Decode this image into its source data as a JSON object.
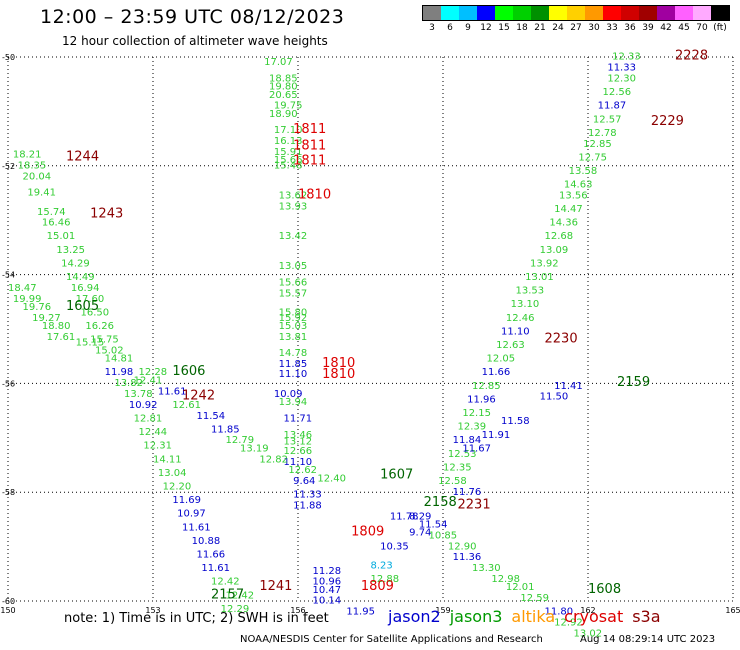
{
  "header": {
    "title": "12:00 – 23:59 UTC 08/12/2023",
    "subtitle": "12 hour collection of altimeter wave heights"
  },
  "legend": {
    "colors": [
      "#7f7f7f",
      "#00ffff",
      "#00bfff",
      "#0000ff",
      "#00ff00",
      "#00d000",
      "#009000",
      "#ffff00",
      "#ffd000",
      "#ff9900",
      "#ff0000",
      "#d00000",
      "#a00000",
      "#a000a0",
      "#ff60ff",
      "#ffaaff",
      "#000000"
    ],
    "labels": [
      "3",
      "6",
      "9",
      "12",
      "15",
      "18",
      "21",
      "24",
      "27",
      "30",
      "33",
      "36",
      "39",
      "42",
      "45",
      "70",
      "(ft)"
    ]
  },
  "map": {
    "lon_range": [
      150,
      165
    ],
    "lat_range": [
      -60,
      -50
    ],
    "x_ticks": [
      "150",
      "153",
      "156",
      "159",
      "162",
      "165"
    ],
    "y_ticks": [
      "-50",
      "-52",
      "-54",
      "-56",
      "-58",
      "-60"
    ],
    "grid": "dotted"
  },
  "times": [
    {
      "text": "2228",
      "lon": 163.8,
      "lat": -50.05,
      "color": "#8b0000"
    },
    {
      "text": "2229",
      "lon": 163.3,
      "lat": -51.25,
      "color": "#8b0000"
    },
    {
      "text": "2230",
      "lon": 161.1,
      "lat": -55.25,
      "color": "#8b0000"
    },
    {
      "text": "2231",
      "lon": 159.3,
      "lat": -58.3,
      "color": "#8b0000"
    },
    {
      "text": "1244",
      "lon": 151.2,
      "lat": -51.9,
      "color": "#8b0000"
    },
    {
      "text": "1243",
      "lon": 151.7,
      "lat": -52.95,
      "color": "#8b0000"
    },
    {
      "text": "1242",
      "lon": 153.6,
      "lat": -56.3,
      "color": "#8b0000"
    },
    {
      "text": "1241",
      "lon": 155.2,
      "lat": -59.8,
      "color": "#8b0000"
    },
    {
      "text": "1811",
      "lon": 155.9,
      "lat": -51.4,
      "color": "#dd0000"
    },
    {
      "text": "1811",
      "lon": 155.9,
      "lat": -51.7,
      "color": "#dd0000"
    },
    {
      "text": "1811",
      "lon": 155.9,
      "lat": -51.98,
      "color": "#dd0000"
    },
    {
      "text": "1810",
      "lon": 156.0,
      "lat": -52.6,
      "color": "#dd0000"
    },
    {
      "text": "1810",
      "lon": 156.5,
      "lat": -55.7,
      "color": "#dd0000"
    },
    {
      "text": "1810",
      "lon": 156.5,
      "lat": -55.9,
      "color": "#dd0000"
    },
    {
      "text": "1809",
      "lon": 157.1,
      "lat": -58.8,
      "color": "#dd0000"
    },
    {
      "text": "1809",
      "lon": 157.3,
      "lat": -59.8,
      "color": "#dd0000"
    },
    {
      "text": "1605",
      "lon": 151.2,
      "lat": -54.65,
      "color": "#006400"
    },
    {
      "text": "1606",
      "lon": 153.4,
      "lat": -55.85,
      "color": "#006400"
    },
    {
      "text": "1607",
      "lon": 157.7,
      "lat": -57.75,
      "color": "#006400"
    },
    {
      "text": "1608",
      "lon": 162.0,
      "lat": -59.85,
      "color": "#006400"
    },
    {
      "text": "2158",
      "lon": 158.6,
      "lat": -58.25,
      "color": "#006400"
    },
    {
      "text": "2159",
      "lon": 162.6,
      "lat": -56.05,
      "color": "#006400"
    },
    {
      "text": "2157",
      "lon": 154.2,
      "lat": -59.95,
      "color": "#006400"
    }
  ],
  "labels": [
    {
      "text": "17.07",
      "lon": 155.3,
      "lat": -50.15,
      "color": "#33cc33"
    },
    {
      "text": "18.85",
      "lon": 155.4,
      "lat": -50.45,
      "color": "#33cc33"
    },
    {
      "text": "19.80",
      "lon": 155.4,
      "lat": -50.6,
      "color": "#33cc33"
    },
    {
      "text": "20.65",
      "lon": 155.4,
      "lat": -50.75,
      "color": "#33cc33"
    },
    {
      "text": "19.75",
      "lon": 155.5,
      "lat": -50.95,
      "color": "#33cc33"
    },
    {
      "text": "18.90",
      "lon": 155.4,
      "lat": -51.1,
      "color": "#33cc33"
    },
    {
      "text": "17.10",
      "lon": 155.5,
      "lat": -51.4,
      "color": "#33cc33"
    },
    {
      "text": "16.13",
      "lon": 155.5,
      "lat": -51.6,
      "color": "#33cc33"
    },
    {
      "text": "15.91",
      "lon": 155.5,
      "lat": -51.8,
      "color": "#33cc33"
    },
    {
      "text": "15.66",
      "lon": 155.5,
      "lat": -51.95,
      "color": "#33cc33"
    },
    {
      "text": "15.48",
      "lon": 155.5,
      "lat": -52.05,
      "color": "#33cc33"
    },
    {
      "text": "13.62",
      "lon": 155.6,
      "lat": -52.6,
      "color": "#33cc33"
    },
    {
      "text": "13.93",
      "lon": 155.6,
      "lat": -52.8,
      "color": "#33cc33"
    },
    {
      "text": "13.42",
      "lon": 155.6,
      "lat": -53.35,
      "color": "#33cc33"
    },
    {
      "text": "13.05",
      "lon": 155.6,
      "lat": -53.9,
      "color": "#33cc33"
    },
    {
      "text": "15.66",
      "lon": 155.6,
      "lat": -54.2,
      "color": "#33cc33"
    },
    {
      "text": "15.57",
      "lon": 155.6,
      "lat": -54.4,
      "color": "#33cc33"
    },
    {
      "text": "15.80",
      "lon": 155.6,
      "lat": -54.75,
      "color": "#33cc33"
    },
    {
      "text": "15.92",
      "lon": 155.6,
      "lat": -54.85,
      "color": "#33cc33"
    },
    {
      "text": "15.03",
      "lon": 155.6,
      "lat": -55.0,
      "color": "#33cc33"
    },
    {
      "text": "13.81",
      "lon": 155.6,
      "lat": -55.2,
      "color": "#33cc33"
    },
    {
      "text": "14.78",
      "lon": 155.6,
      "lat": -55.5,
      "color": "#33cc33"
    },
    {
      "text": "11.85",
      "lon": 155.6,
      "lat": -55.7,
      "color": "#0000cc"
    },
    {
      "text": "11.10",
      "lon": 155.6,
      "lat": -55.88,
      "color": "#0000cc"
    },
    {
      "text": "10.09",
      "lon": 155.5,
      "lat": -56.25,
      "color": "#0000cc"
    },
    {
      "text": "13.94",
      "lon": 155.6,
      "lat": -56.4,
      "color": "#33cc33"
    },
    {
      "text": "11.71",
      "lon": 155.7,
      "lat": -56.7,
      "color": "#0000cc"
    },
    {
      "text": "13.46",
      "lon": 155.7,
      "lat": -57.0,
      "color": "#33cc33"
    },
    {
      "text": "13.12",
      "lon": 155.7,
      "lat": -57.12,
      "color": "#33cc33"
    },
    {
      "text": "12.66",
      "lon": 155.7,
      "lat": -57.3,
      "color": "#33cc33"
    },
    {
      "text": "11.10",
      "lon": 155.7,
      "lat": -57.5,
      "color": "#0000cc"
    },
    {
      "text": "12.62",
      "lon": 155.8,
      "lat": -57.65,
      "color": "#33cc33"
    },
    {
      "text": "9.64",
      "lon": 155.9,
      "lat": -57.85,
      "color": "#0000cc"
    },
    {
      "text": "12.40",
      "lon": 156.4,
      "lat": -57.8,
      "color": "#33cc33"
    },
    {
      "text": "11.33",
      "lon": 155.9,
      "lat": -58.1,
      "color": "#0000cc"
    },
    {
      "text": "11.88",
      "lon": 155.9,
      "lat": -58.3,
      "color": "#0000cc"
    },
    {
      "text": "18.21",
      "lon": 150.1,
      "lat": -51.85,
      "color": "#33cc33"
    },
    {
      "text": "18.35",
      "lon": 150.2,
      "lat": -52.05,
      "color": "#33cc33"
    },
    {
      "text": "20.04",
      "lon": 150.3,
      "lat": -52.25,
      "color": "#33cc33"
    },
    {
      "text": "19.41",
      "lon": 150.4,
      "lat": -52.55,
      "color": "#33cc33"
    },
    {
      "text": "15.74",
      "lon": 150.6,
      "lat": -52.9,
      "color": "#33cc33"
    },
    {
      "text": "16.46",
      "lon": 150.7,
      "lat": -53.1,
      "color": "#33cc33"
    },
    {
      "text": "15.01",
      "lon": 150.8,
      "lat": -53.35,
      "color": "#33cc33"
    },
    {
      "text": "13.25",
      "lon": 151.0,
      "lat": -53.6,
      "color": "#33cc33"
    },
    {
      "text": "14.29",
      "lon": 151.1,
      "lat": -53.85,
      "color": "#33cc33"
    },
    {
      "text": "14.49",
      "lon": 151.2,
      "lat": -54.1,
      "color": "#33cc33"
    },
    {
      "text": "18.47",
      "lon": 150.0,
      "lat": -54.3,
      "color": "#33cc33"
    },
    {
      "text": "16.94",
      "lon": 151.3,
      "lat": -54.3,
      "color": "#33cc33"
    },
    {
      "text": "19.99",
      "lon": 150.1,
      "lat": -54.5,
      "color": "#33cc33"
    },
    {
      "text": "17.60",
      "lon": 151.4,
      "lat": -54.5,
      "color": "#33cc33"
    },
    {
      "text": "19.76",
      "lon": 150.3,
      "lat": -54.65,
      "color": "#33cc33"
    },
    {
      "text": "19.27",
      "lon": 150.5,
      "lat": -54.85,
      "color": "#33cc33"
    },
    {
      "text": "16.50",
      "lon": 151.5,
      "lat": -54.75,
      "color": "#33cc33"
    },
    {
      "text": "18.80",
      "lon": 150.7,
      "lat": -55.0,
      "color": "#33cc33"
    },
    {
      "text": "16.26",
      "lon": 151.6,
      "lat": -55.0,
      "color": "#33cc33"
    },
    {
      "text": "17.61",
      "lon": 150.8,
      "lat": -55.2,
      "color": "#33cc33"
    },
    {
      "text": "15.15",
      "lon": 151.4,
      "lat": -55.3,
      "color": "#33cc33"
    },
    {
      "text": "15.75",
      "lon": 151.7,
      "lat": -55.25,
      "color": "#33cc33"
    },
    {
      "text": "15.02",
      "lon": 151.8,
      "lat": -55.45,
      "color": "#33cc33"
    },
    {
      "text": "14.81",
      "lon": 152.0,
      "lat": -55.6,
      "color": "#33cc33"
    },
    {
      "text": "11.98",
      "lon": 152.0,
      "lat": -55.85,
      "color": "#0000cc"
    },
    {
      "text": "12.28",
      "lon": 152.7,
      "lat": -55.85,
      "color": "#33cc33"
    },
    {
      "text": "13.82",
      "lon": 152.2,
      "lat": -56.05,
      "color": "#33cc33"
    },
    {
      "text": "12.41",
      "lon": 152.6,
      "lat": -56.0,
      "color": "#33cc33"
    },
    {
      "text": "13.78",
      "lon": 152.4,
      "lat": -56.25,
      "color": "#33cc33"
    },
    {
      "text": "11.61",
      "lon": 153.1,
      "lat": -56.2,
      "color": "#0000cc"
    },
    {
      "text": "10.92",
      "lon": 152.5,
      "lat": -56.45,
      "color": "#0000cc"
    },
    {
      "text": "12.61",
      "lon": 153.4,
      "lat": -56.45,
      "color": "#33cc33"
    },
    {
      "text": "12.81",
      "lon": 152.6,
      "lat": -56.7,
      "color": "#33cc33"
    },
    {
      "text": "11.54",
      "lon": 153.9,
      "lat": -56.65,
      "color": "#0000cc"
    },
    {
      "text": "12.44",
      "lon": 152.7,
      "lat": -56.95,
      "color": "#33cc33"
    },
    {
      "text": "11.85",
      "lon": 154.2,
      "lat": -56.9,
      "color": "#0000cc"
    },
    {
      "text": "12.31",
      "lon": 152.8,
      "lat": -57.2,
      "color": "#33cc33"
    },
    {
      "text": "12.79",
      "lon": 154.5,
      "lat": -57.1,
      "color": "#33cc33"
    },
    {
      "text": "13.19",
      "lon": 154.8,
      "lat": -57.25,
      "color": "#33cc33"
    },
    {
      "text": "14.11",
      "lon": 153.0,
      "lat": -57.45,
      "color": "#33cc33"
    },
    {
      "text": "12.82",
      "lon": 155.2,
      "lat": -57.45,
      "color": "#33cc33"
    },
    {
      "text": "13.04",
      "lon": 153.1,
      "lat": -57.7,
      "color": "#33cc33"
    },
    {
      "text": "12.20",
      "lon": 153.2,
      "lat": -57.95,
      "color": "#33cc33"
    },
    {
      "text": "11.69",
      "lon": 153.4,
      "lat": -58.2,
      "color": "#0000cc"
    },
    {
      "text": "10.97",
      "lon": 153.5,
      "lat": -58.45,
      "color": "#0000cc"
    },
    {
      "text": "11.61",
      "lon": 153.6,
      "lat": -58.7,
      "color": "#0000cc"
    },
    {
      "text": "10.88",
      "lon": 153.8,
      "lat": -58.95,
      "color": "#0000cc"
    },
    {
      "text": "11.66",
      "lon": 153.9,
      "lat": -59.2,
      "color": "#0000cc"
    },
    {
      "text": "11.61",
      "lon": 154.0,
      "lat": -59.45,
      "color": "#0000cc"
    },
    {
      "text": "12.42",
      "lon": 154.2,
      "lat": -59.7,
      "color": "#33cc33"
    },
    {
      "text": "12.42",
      "lon": 154.5,
      "lat": -59.95,
      "color": "#33cc33"
    },
    {
      "text": "12.33",
      "lon": 162.5,
      "lat": -50.05,
      "color": "#33cc33"
    },
    {
      "text": "11.33",
      "lon": 162.4,
      "lat": -50.25,
      "color": "#0000cc"
    },
    {
      "text": "12.30",
      "lon": 162.4,
      "lat": -50.45,
      "color": "#33cc33"
    },
    {
      "text": "12.56",
      "lon": 162.3,
      "lat": -50.7,
      "color": "#33cc33"
    },
    {
      "text": "11.87",
      "lon": 162.2,
      "lat": -50.95,
      "color": "#0000cc"
    },
    {
      "text": "12.57",
      "lon": 162.1,
      "lat": -51.2,
      "color": "#33cc33"
    },
    {
      "text": "12.78",
      "lon": 162.0,
      "lat": -51.45,
      "color": "#33cc33"
    },
    {
      "text": "12.85",
      "lon": 161.9,
      "lat": -51.65,
      "color": "#33cc33"
    },
    {
      "text": "12.75",
      "lon": 161.8,
      "lat": -51.9,
      "color": "#33cc33"
    },
    {
      "text": "13.58",
      "lon": 161.6,
      "lat": -52.15,
      "color": "#33cc33"
    },
    {
      "text": "14.63",
      "lon": 161.5,
      "lat": -52.4,
      "color": "#33cc33"
    },
    {
      "text": "13.56",
      "lon": 161.4,
      "lat": -52.6,
      "color": "#33cc33"
    },
    {
      "text": "14.47",
      "lon": 161.3,
      "lat": -52.85,
      "color": "#33cc33"
    },
    {
      "text": "14.36",
      "lon": 161.2,
      "lat": -53.1,
      "color": "#33cc33"
    },
    {
      "text": "12.68",
      "lon": 161.1,
      "lat": -53.35,
      "color": "#33cc33"
    },
    {
      "text": "13.09",
      "lon": 161.0,
      "lat": -53.6,
      "color": "#33cc33"
    },
    {
      "text": "13.92",
      "lon": 160.8,
      "lat": -53.85,
      "color": "#33cc33"
    },
    {
      "text": "13.01",
      "lon": 160.7,
      "lat": -54.1,
      "color": "#33cc33"
    },
    {
      "text": "13.53",
      "lon": 160.5,
      "lat": -54.35,
      "color": "#33cc33"
    },
    {
      "text": "13.10",
      "lon": 160.4,
      "lat": -54.6,
      "color": "#33cc33"
    },
    {
      "text": "12.46",
      "lon": 160.3,
      "lat": -54.85,
      "color": "#33cc33"
    },
    {
      "text": "11.10",
      "lon": 160.2,
      "lat": -55.1,
      "color": "#0000cc"
    },
    {
      "text": "12.63",
      "lon": 160.1,
      "lat": -55.35,
      "color": "#33cc33"
    },
    {
      "text": "12.05",
      "lon": 159.9,
      "lat": -55.6,
      "color": "#33cc33"
    },
    {
      "text": "11.66",
      "lon": 159.8,
      "lat": -55.85,
      "color": "#0000cc"
    },
    {
      "text": "12.85",
      "lon": 159.6,
      "lat": -56.1,
      "color": "#33cc33"
    },
    {
      "text": "11.96",
      "lon": 159.5,
      "lat": -56.35,
      "color": "#0000cc"
    },
    {
      "text": "12.15",
      "lon": 159.4,
      "lat": -56.6,
      "color": "#33cc33"
    },
    {
      "text": "12.39",
      "lon": 159.3,
      "lat": -56.85,
      "color": "#33cc33"
    },
    {
      "text": "11.84",
      "lon": 159.2,
      "lat": -57.1,
      "color": "#0000cc"
    },
    {
      "text": "12.53",
      "lon": 159.1,
      "lat": -57.35,
      "color": "#33cc33"
    },
    {
      "text": "12.35",
      "lon": 159.0,
      "lat": -57.6,
      "color": "#33cc33"
    },
    {
      "text": "12.58",
      "lon": 158.9,
      "lat": -57.85,
      "color": "#33cc33"
    },
    {
      "text": "11.76",
      "lon": 159.2,
      "lat": -58.05,
      "color": "#0000cc"
    },
    {
      "text": "11.78",
      "lon": 157.9,
      "lat": -58.5,
      "color": "#0000cc"
    },
    {
      "text": "8.29",
      "lon": 158.3,
      "lat": -58.5,
      "color": "#0000cc"
    },
    {
      "text": "11.54",
      "lon": 158.5,
      "lat": -58.65,
      "color": "#0000cc"
    },
    {
      "text": "9.74",
      "lon": 158.3,
      "lat": -58.8,
      "color": "#0000cc"
    },
    {
      "text": "10.85",
      "lon": 158.7,
      "lat": -58.85,
      "color": "#33cc33"
    },
    {
      "text": "10.35",
      "lon": 157.7,
      "lat": -59.05,
      "color": "#0000cc"
    },
    {
      "text": "12.90",
      "lon": 159.1,
      "lat": -59.05,
      "color": "#33cc33"
    },
    {
      "text": "11.36",
      "lon": 159.2,
      "lat": -59.25,
      "color": "#0000cc"
    },
    {
      "text": "8.23",
      "lon": 157.5,
      "lat": -59.4,
      "color": "#00aadd"
    },
    {
      "text": "13.30",
      "lon": 159.6,
      "lat": -59.45,
      "color": "#33cc33"
    },
    {
      "text": "12.98",
      "lon": 160.0,
      "lat": -59.65,
      "color": "#33cc33"
    },
    {
      "text": "12.88",
      "lon": 157.5,
      "lat": -59.65,
      "color": "#33cc33"
    },
    {
      "text": "12.01",
      "lon": 160.3,
      "lat": -59.8,
      "color": "#33cc33"
    },
    {
      "text": "12.59",
      "lon": 160.6,
      "lat": -60.0,
      "color": "#33cc33"
    },
    {
      "text": "11.80",
      "lon": 161.1,
      "lat": -60.25,
      "color": "#0000cc"
    },
    {
      "text": "12.92",
      "lon": 161.3,
      "lat": -60.45,
      "color": "#33cc33"
    },
    {
      "text": "13.02",
      "lon": 161.7,
      "lat": -60.65,
      "color": "#33cc33"
    },
    {
      "text": "11.28",
      "lon": 156.3,
      "lat": -59.5,
      "color": "#0000cc"
    },
    {
      "text": "10.96",
      "lon": 156.3,
      "lat": -59.7,
      "color": "#0000cc"
    },
    {
      "text": "10.47",
      "lon": 156.3,
      "lat": -59.85,
      "color": "#0000cc"
    },
    {
      "text": "10.14",
      "lon": 156.3,
      "lat": -60.05,
      "color": "#0000cc"
    },
    {
      "text": "11.95",
      "lon": 157.0,
      "lat": -60.25,
      "color": "#0000cc"
    },
    {
      "text": "12.29",
      "lon": 154.4,
      "lat": -60.2,
      "color": "#33cc33"
    },
    {
      "text": "11.50",
      "lon": 161.0,
      "lat": -56.3,
      "color": "#0000cc"
    },
    {
      "text": "11.41",
      "lon": 161.3,
      "lat": -56.1,
      "color": "#0000cc"
    },
    {
      "text": "11.58",
      "lon": 160.2,
      "lat": -56.75,
      "color": "#0000cc"
    },
    {
      "text": "11.91",
      "lon": 159.8,
      "lat": -57.0,
      "color": "#0000cc"
    },
    {
      "text": "11.67",
      "lon": 159.4,
      "lat": -57.25,
      "color": "#0000cc"
    }
  ],
  "footer": {
    "note": "note: 1) Time is in UTC; 2) SWH is in feet",
    "satellites": [
      {
        "name": "jason2",
        "color": "#0000cc"
      },
      {
        "name": "jason3",
        "color": "#009900"
      },
      {
        "name": "altika",
        "color": "#ff9900"
      },
      {
        "name": "cryosat",
        "color": "#dd0000"
      },
      {
        "name": "s3a",
        "color": "#8b0000"
      }
    ],
    "credit": "NOAA/NESDIS Center for Satellite Applications and Research",
    "generated": "Aug 14 08:29:14 UTC 2023"
  }
}
